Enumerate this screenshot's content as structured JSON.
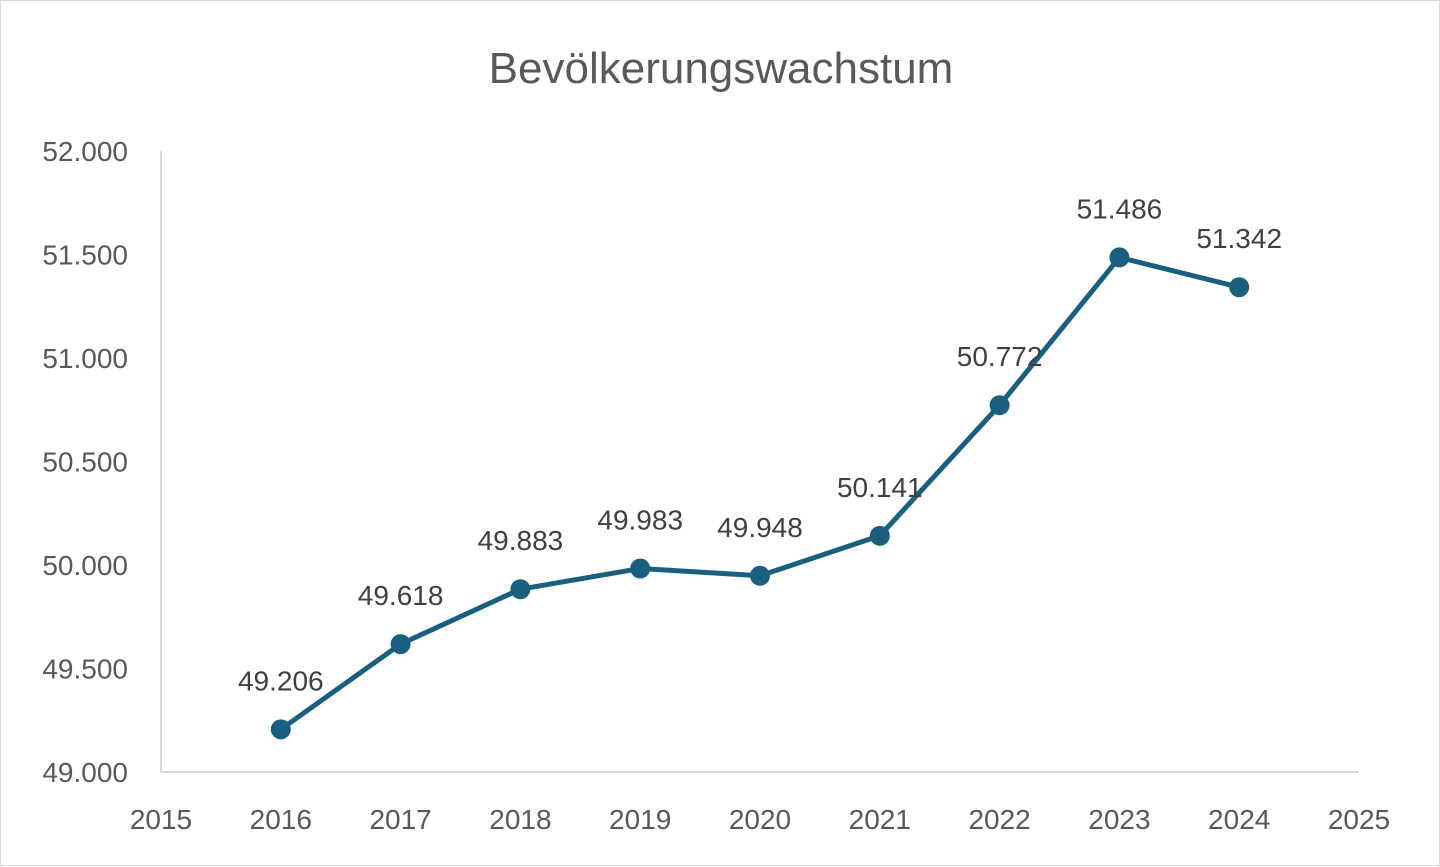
{
  "chart_data": {
    "type": "line",
    "title": "Bevölkerungswachstum",
    "xlabel": "",
    "ylabel": "",
    "x": [
      2016,
      2017,
      2018,
      2019,
      2020,
      2021,
      2022,
      2023,
      2024
    ],
    "values": [
      49206,
      49618,
      49883,
      49983,
      49948,
      50141,
      50772,
      51486,
      51342
    ],
    "data_labels": [
      "49.206",
      "49.618",
      "49.883",
      "49.983",
      "49.948",
      "50.141",
      "50.772",
      "51.486",
      "51.342"
    ],
    "xlim": [
      2015,
      2025
    ],
    "ylim": [
      49000,
      52000
    ],
    "x_ticks": [
      "2015",
      "2016",
      "2017",
      "2018",
      "2019",
      "2020",
      "2021",
      "2022",
      "2023",
      "2024",
      "2025"
    ],
    "y_ticks": [
      {
        "value": 49000,
        "label": "49.000"
      },
      {
        "value": 49500,
        "label": "49.500"
      },
      {
        "value": 50000,
        "label": "50.000"
      },
      {
        "value": 50500,
        "label": "50.500"
      },
      {
        "value": 51000,
        "label": "51.000"
      },
      {
        "value": 51500,
        "label": "51.500"
      },
      {
        "value": 52000,
        "label": "52.000"
      }
    ],
    "grid": false,
    "legend": "none",
    "line_color": "#1a5e80",
    "axis_color": "#d9d9d9"
  }
}
